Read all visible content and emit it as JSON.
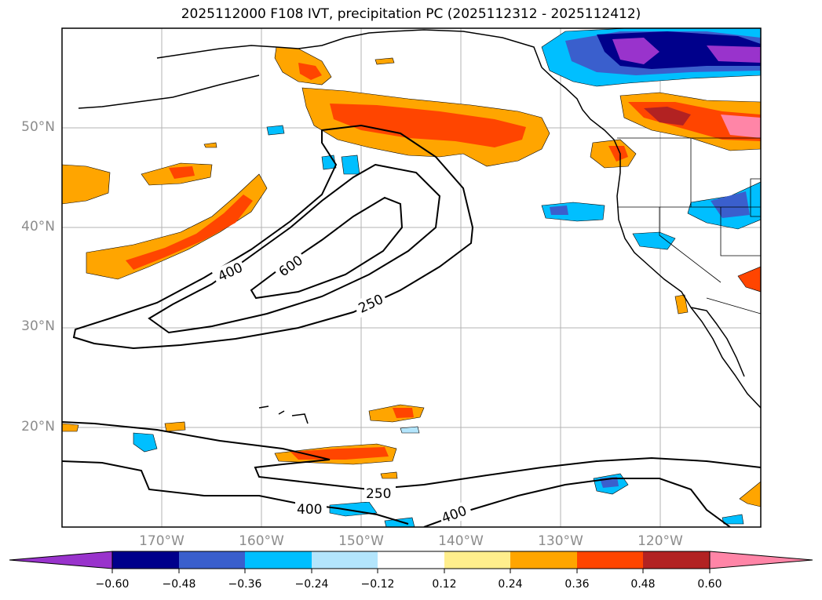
{
  "title": "2025112000 F108 IVT, precipitation PC (2025112312 - 2025112412)",
  "map": {
    "lat_labels": [
      "50°N",
      "40°N",
      "30°N",
      "20°N"
    ],
    "lon_labels": [
      "170°W",
      "160°W",
      "150°W",
      "140°W",
      "130°W",
      "120°W"
    ],
    "ivt_contour_labels": [
      "400",
      "600",
      "250",
      "250",
      "400",
      "400"
    ]
  },
  "colorbar": {
    "ticks": [
      "−0.60",
      "−0.48",
      "−0.36",
      "−0.24",
      "−0.12",
      "0.12",
      "0.24",
      "0.36",
      "0.48",
      "0.60"
    ],
    "colors": [
      "#9933cc",
      "#00008b",
      "#3a5fcd",
      "#00bfff",
      "#b3e5fc",
      "#ffffff",
      "#ffee8c",
      "#ffa500",
      "#ff4500",
      "#b22222",
      "#ff85a7",
      "#ff85a7"
    ]
  },
  "colors": {
    "orange": "#ffa500",
    "red_orange": "#ff4500",
    "dark_red": "#b22222",
    "pink": "#ff85a7",
    "light_blue": "#00bfff",
    "blue": "#3a5fcd",
    "navy": "#00008b",
    "purple": "#9933cc",
    "grid": "#b3b3b3"
  }
}
